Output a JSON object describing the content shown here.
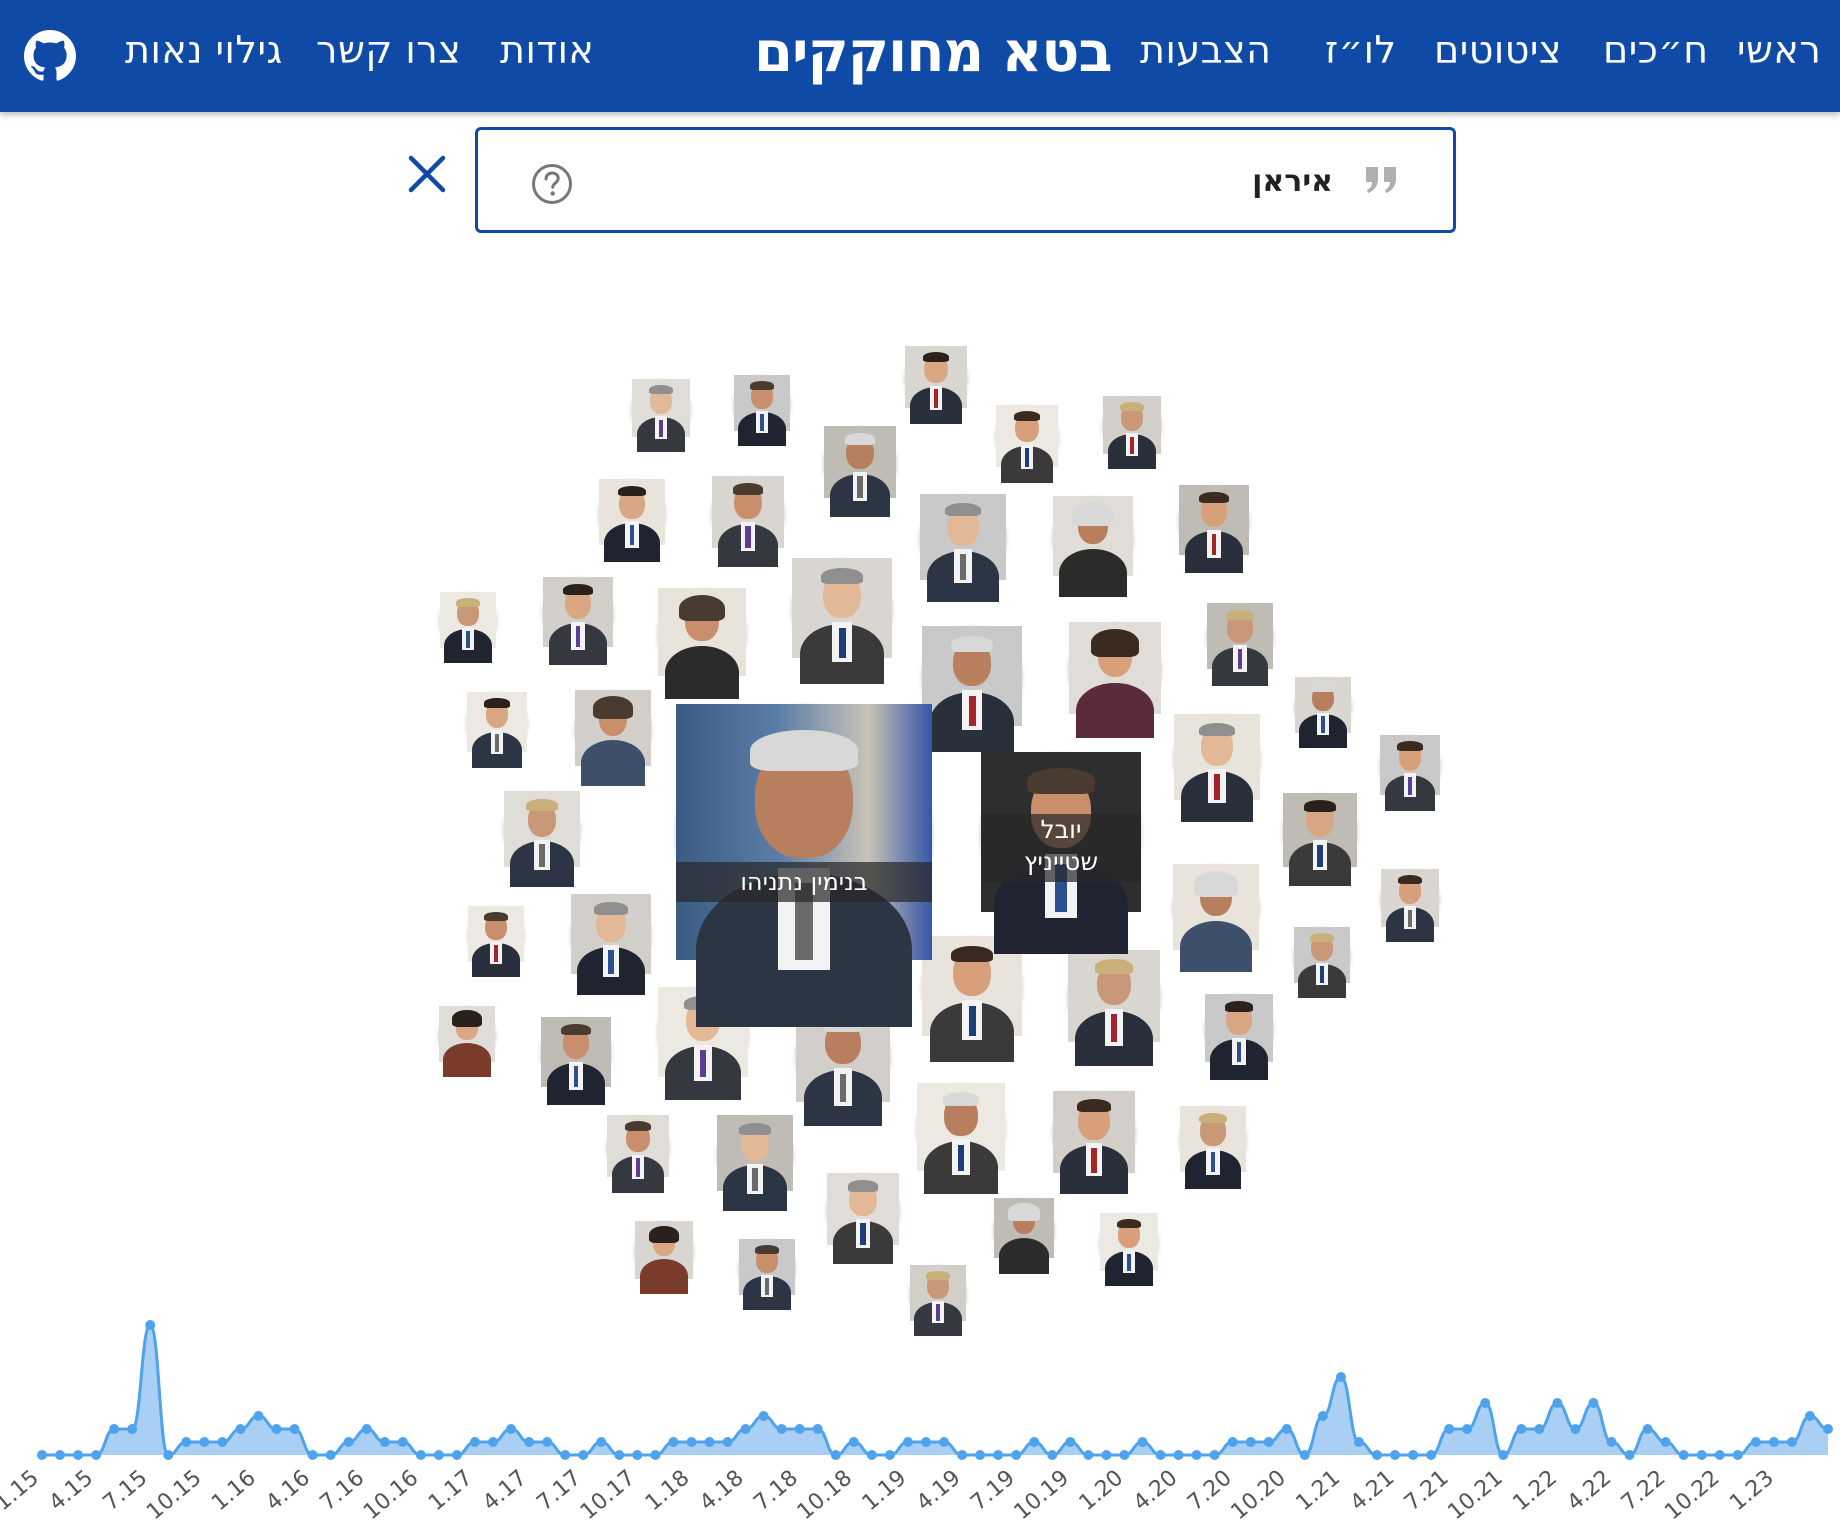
{
  "nav": {
    "home": "ראשי",
    "mks": "ח״כים",
    "quotes": "ציטוטים",
    "schedule": "לו״ז",
    "votes": "הצבעות",
    "brand": "בטא מחוקקים",
    "about": "אודות",
    "contact": "צרו קשר",
    "disclosure": "גילוי נאות"
  },
  "search": {
    "query": "איראן"
  },
  "bubbles": {
    "netanyahu": "בנימין נתניהו",
    "steinitz_first": "יובל",
    "steinitz_last": "שטייניץ"
  },
  "colors": {
    "brand": "#0f4aa6",
    "timeline_line": "#4fa3ec",
    "timeline_fill": "#a9cff5"
  },
  "icons": {
    "github": "github-icon",
    "quote": "quote-icon",
    "help": "help-icon",
    "clear": "close-icon"
  },
  "chart_data": {
    "type": "area",
    "tick_labels": [
      "1.15",
      "4.15",
      "7.15",
      "10.15",
      "1.16",
      "4.16",
      "7.16",
      "10.16",
      "1.17",
      "4.17",
      "7.17",
      "10.17",
      "1.18",
      "4.18",
      "7.18",
      "10.18",
      "1.19",
      "4.19",
      "7.19",
      "10.19",
      "1.20",
      "4.20",
      "7.20",
      "10.20",
      "1.21",
      "4.21",
      "7.21",
      "10.21",
      "1.22",
      "4.22",
      "7.22",
      "10.22",
      "1.23"
    ],
    "values": [
      0,
      0,
      0,
      0,
      2,
      2,
      10,
      0,
      1,
      1,
      1,
      2,
      3,
      2,
      2,
      0,
      0,
      1,
      2,
      1,
      1,
      0,
      0,
      0,
      1,
      1,
      2,
      1,
      1,
      0,
      0,
      1,
      0,
      0,
      0,
      1,
      1,
      1,
      1,
      2,
      3,
      2,
      2,
      2,
      0,
      1,
      0,
      0,
      1,
      1,
      1,
      0,
      0,
      0,
      0,
      1,
      0,
      1,
      0,
      0,
      0,
      1,
      0,
      0,
      0,
      0,
      1,
      1,
      1,
      2,
      0,
      3,
      6,
      1,
      0,
      0,
      0,
      0,
      2,
      2,
      4,
      0,
      2,
      2,
      4,
      2,
      4,
      1,
      0,
      2,
      1,
      0,
      0,
      0,
      0,
      1,
      1,
      1,
      3,
      2
    ],
    "grid": false,
    "legend": "none"
  }
}
